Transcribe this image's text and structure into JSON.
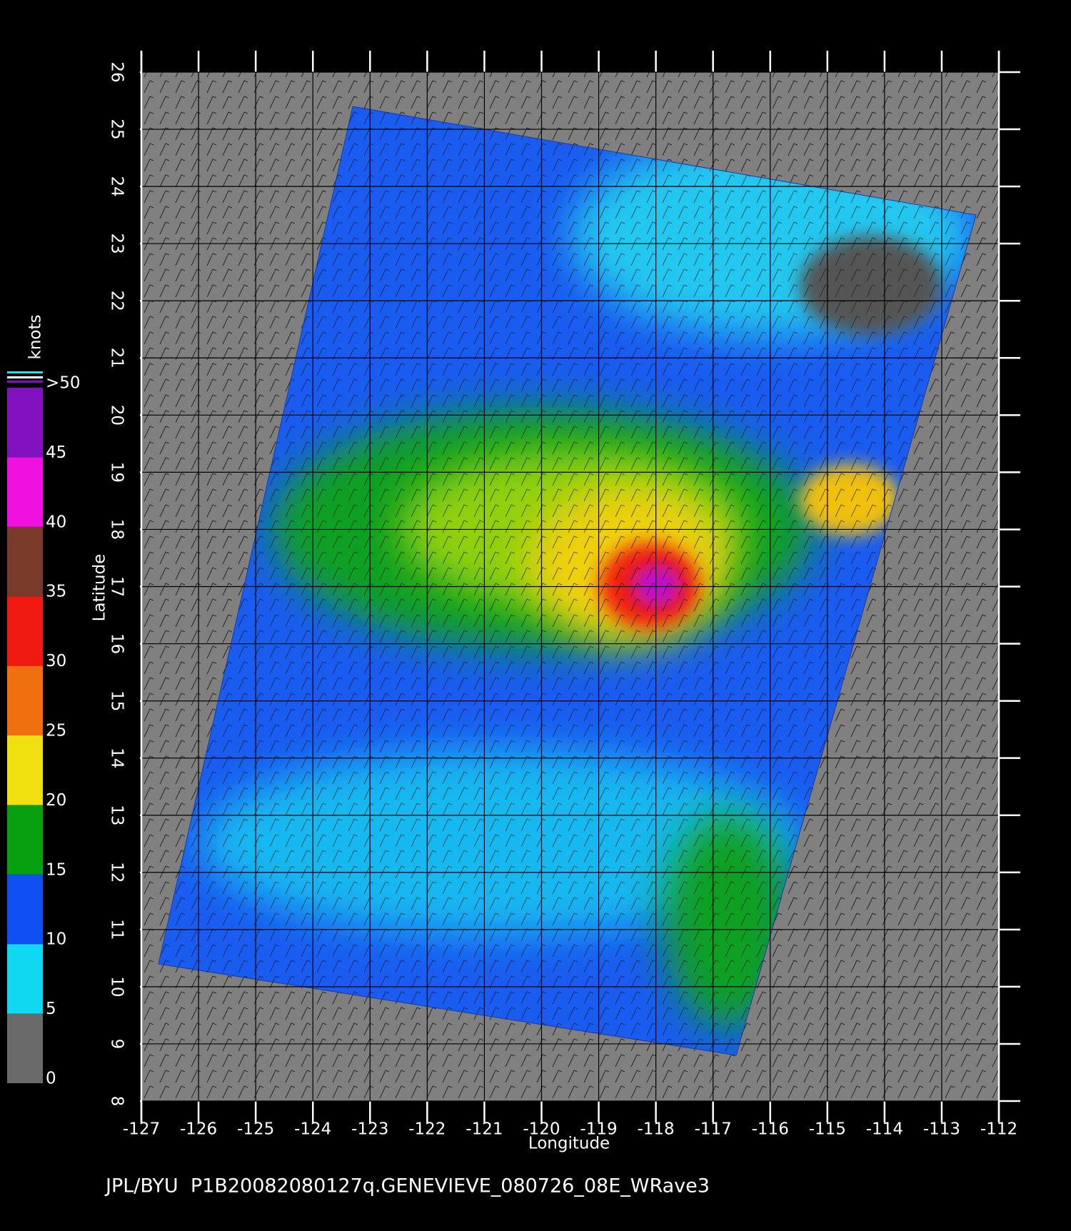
{
  "map": {
    "xlabel": "Longitude",
    "ylabel": "Latitude",
    "xlim": [
      -127,
      -112
    ],
    "xticks": [
      -127,
      -126,
      -125,
      -124,
      -123,
      -122,
      -121,
      -120,
      -119,
      -118,
      -117,
      -116,
      -115,
      -114,
      -113,
      -112
    ],
    "ylim": [
      8,
      26
    ],
    "yticks": [
      8,
      9,
      10,
      11,
      12,
      13,
      14,
      15,
      16,
      17,
      18,
      19,
      20,
      21,
      22,
      23,
      24,
      25,
      26
    ],
    "grid": true
  },
  "colorbar": {
    "label": "knots",
    "ticks": [
      0,
      5,
      10,
      15,
      20,
      25,
      30,
      35,
      40,
      45,
      {
        "value": 50,
        "label": ">50"
      }
    ],
    "colors": [
      "#6a6a6a",
      "#10d8f0",
      "#1050f0",
      "#08a010",
      "#f0e010",
      "#f07010",
      "#f01a10",
      "#7a3a2a",
      "#f010e0",
      "#8010c0"
    ]
  },
  "footer": "JPL/BYU  P1B20082080127q.GENEVIEVE_080726_08E_WRave3"
}
